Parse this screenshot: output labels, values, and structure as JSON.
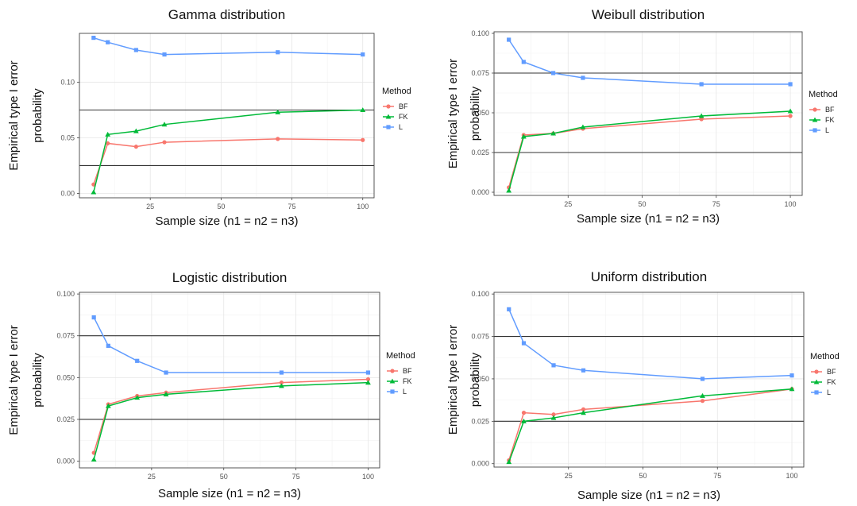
{
  "chart_data": [
    {
      "type": "line",
      "title": "Gamma distribution",
      "xlabel": "Sample size (n1 = n2 = n3)",
      "ylabel": [
        "Empirical type I error",
        "probability"
      ],
      "x": [
        5,
        10,
        20,
        30,
        70,
        100
      ],
      "xlim": [
        0,
        104
      ],
      "ylim": [
        -0.004,
        0.144
      ],
      "xticks": [
        25,
        50,
        75,
        100
      ],
      "yticks": [
        0.0,
        0.05,
        0.1
      ],
      "ytick_labels": [
        "0.00",
        "0.05",
        "0.10"
      ],
      "hlines": [
        0.025,
        0.075
      ],
      "legend": {
        "title": "Method",
        "position": "right"
      },
      "series": [
        {
          "name": "BF",
          "color": "#F8766D",
          "marker": "circle",
          "values": [
            0.008,
            0.045,
            0.042,
            0.046,
            0.049,
            0.048
          ]
        },
        {
          "name": "FK",
          "color": "#00BA38",
          "marker": "triangle",
          "values": [
            0.001,
            0.053,
            0.056,
            0.062,
            0.073,
            0.075
          ]
        },
        {
          "name": "L",
          "color": "#619CFF",
          "marker": "square",
          "values": [
            0.14,
            0.136,
            0.129,
            0.125,
            0.127,
            0.125
          ]
        }
      ]
    },
    {
      "type": "line",
      "title": "Weibull distribution",
      "xlabel": "Sample size (n1 = n2 = n3)",
      "ylabel": [
        "Empirical type I error",
        "probability"
      ],
      "x": [
        5,
        10,
        20,
        30,
        70,
        100
      ],
      "xlim": [
        0,
        104
      ],
      "ylim": [
        -0.002,
        0.101
      ],
      "xticks": [
        25,
        50,
        75,
        100
      ],
      "yticks": [
        0.0,
        0.025,
        0.05,
        0.075,
        0.1
      ],
      "ytick_labels": [
        "0.000",
        "0.025",
        "0.050",
        "0.075",
        "0.100"
      ],
      "hlines": [
        0.025,
        0.075
      ],
      "legend": {
        "title": "Method",
        "position": "right"
      },
      "series": [
        {
          "name": "BF",
          "color": "#F8766D",
          "marker": "circle",
          "values": [
            0.003,
            0.036,
            0.037,
            0.04,
            0.046,
            0.048
          ]
        },
        {
          "name": "FK",
          "color": "#00BA38",
          "marker": "triangle",
          "values": [
            0.001,
            0.035,
            0.037,
            0.041,
            0.048,
            0.051
          ]
        },
        {
          "name": "L",
          "color": "#619CFF",
          "marker": "square",
          "values": [
            0.096,
            0.082,
            0.075,
            0.072,
            0.068,
            0.068
          ]
        }
      ]
    },
    {
      "type": "line",
      "title": "Logistic distribution",
      "xlabel": "Sample size (n1 = n2 = n3)",
      "ylabel": [
        "Empirical type I error",
        "probability"
      ],
      "x": [
        5,
        10,
        20,
        30,
        70,
        100
      ],
      "xlim": [
        0,
        104
      ],
      "ylim": [
        -0.004,
        0.101
      ],
      "xticks": [
        25,
        50,
        75,
        100
      ],
      "yticks": [
        0.0,
        0.025,
        0.05,
        0.075,
        0.1
      ],
      "ytick_labels": [
        "0.000",
        "0.025",
        "0.050",
        "0.075",
        "0.100"
      ],
      "hlines": [
        0.025,
        0.075
      ],
      "legend": {
        "title": "Method",
        "position": "right"
      },
      "series": [
        {
          "name": "BF",
          "color": "#F8766D",
          "marker": "circle",
          "values": [
            0.005,
            0.034,
            0.039,
            0.041,
            0.047,
            0.049
          ]
        },
        {
          "name": "FK",
          "color": "#00BA38",
          "marker": "triangle",
          "values": [
            0.001,
            0.033,
            0.038,
            0.04,
            0.045,
            0.047
          ]
        },
        {
          "name": "L",
          "color": "#619CFF",
          "marker": "square",
          "values": [
            0.086,
            0.069,
            0.06,
            0.053,
            0.053,
            0.053
          ]
        }
      ]
    },
    {
      "type": "line",
      "title": "Uniform distribution",
      "xlabel": "Sample size (n1 = n2 = n3)",
      "ylabel": [
        "Empirical type I error",
        "probability"
      ],
      "x": [
        5,
        10,
        20,
        30,
        70,
        100
      ],
      "xlim": [
        0,
        104
      ],
      "ylim": [
        -0.002,
        0.101
      ],
      "xticks": [
        25,
        50,
        75,
        100
      ],
      "yticks": [
        0.0,
        0.025,
        0.05,
        0.075,
        0.1
      ],
      "ytick_labels": [
        "0.000",
        "0.025",
        "0.050",
        "0.075",
        "0.100"
      ],
      "hlines": [
        0.025,
        0.075
      ],
      "legend": {
        "title": "Method",
        "position": "right"
      },
      "series": [
        {
          "name": "BF",
          "color": "#F8766D",
          "marker": "circle",
          "values": [
            0.002,
            0.03,
            0.029,
            0.032,
            0.037,
            0.044
          ]
        },
        {
          "name": "FK",
          "color": "#00BA38",
          "marker": "triangle",
          "values": [
            0.001,
            0.025,
            0.027,
            0.03,
            0.04,
            0.044
          ]
        },
        {
          "name": "L",
          "color": "#619CFF",
          "marker": "square",
          "values": [
            0.091,
            0.071,
            0.058,
            0.055,
            0.05,
            0.052
          ]
        }
      ]
    }
  ]
}
